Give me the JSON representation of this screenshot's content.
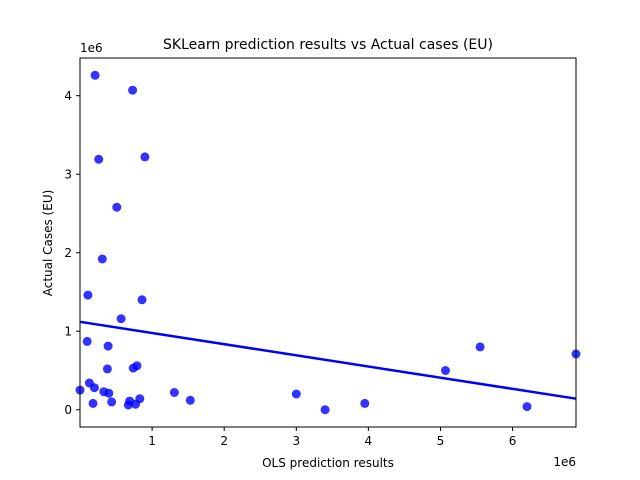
{
  "chart_data": {
    "type": "scatter",
    "title": "SKLearn prediction results vs Actual cases (EU)",
    "xlabel": "OLS prediction results",
    "ylabel": "Actual Cases (EU)",
    "x_offset_label": "1e6",
    "y_offset_label": "1e6",
    "xlim": [
      0.0,
      6.88
    ],
    "ylim": [
      -0.22,
      4.48
    ],
    "x_ticks": [
      1,
      2,
      3,
      4,
      5,
      6
    ],
    "y_ticks": [
      0,
      1,
      2,
      3,
      4
    ],
    "grid": false,
    "points": [
      {
        "x": 0.0,
        "y": 0.25
      },
      {
        "x": 0.1,
        "y": 0.87
      },
      {
        "x": 0.11,
        "y": 1.46
      },
      {
        "x": 0.13,
        "y": 0.34
      },
      {
        "x": 0.18,
        "y": 0.08
      },
      {
        "x": 0.2,
        "y": 0.28
      },
      {
        "x": 0.21,
        "y": 4.26
      },
      {
        "x": 0.26,
        "y": 3.19
      },
      {
        "x": 0.31,
        "y": 1.92
      },
      {
        "x": 0.33,
        "y": 0.23
      },
      {
        "x": 0.38,
        "y": 0.52
      },
      {
        "x": 0.39,
        "y": 0.81
      },
      {
        "x": 0.4,
        "y": 0.21
      },
      {
        "x": 0.44,
        "y": 0.1
      },
      {
        "x": 0.51,
        "y": 2.58
      },
      {
        "x": 0.57,
        "y": 1.16
      },
      {
        "x": 0.67,
        "y": 0.06
      },
      {
        "x": 0.69,
        "y": 0.11
      },
      {
        "x": 0.73,
        "y": 4.07
      },
      {
        "x": 0.74,
        "y": 0.53
      },
      {
        "x": 0.77,
        "y": 0.07
      },
      {
        "x": 0.79,
        "y": 0.56
      },
      {
        "x": 0.83,
        "y": 0.14
      },
      {
        "x": 0.86,
        "y": 1.4
      },
      {
        "x": 0.9,
        "y": 3.22
      },
      {
        "x": 1.31,
        "y": 0.22
      },
      {
        "x": 1.53,
        "y": 0.12
      },
      {
        "x": 3.0,
        "y": 0.2
      },
      {
        "x": 3.4,
        "y": 0.0
      },
      {
        "x": 3.95,
        "y": 0.08
      },
      {
        "x": 5.07,
        "y": 0.5
      },
      {
        "x": 5.55,
        "y": 0.8
      },
      {
        "x": 6.2,
        "y": 0.04
      },
      {
        "x": 6.88,
        "y": 0.71
      }
    ],
    "regression_line": {
      "x": [
        0.0,
        6.88
      ],
      "y": [
        1.12,
        0.14
      ]
    },
    "colors": {
      "points": "#0000ff",
      "line": "#0000ff"
    }
  }
}
